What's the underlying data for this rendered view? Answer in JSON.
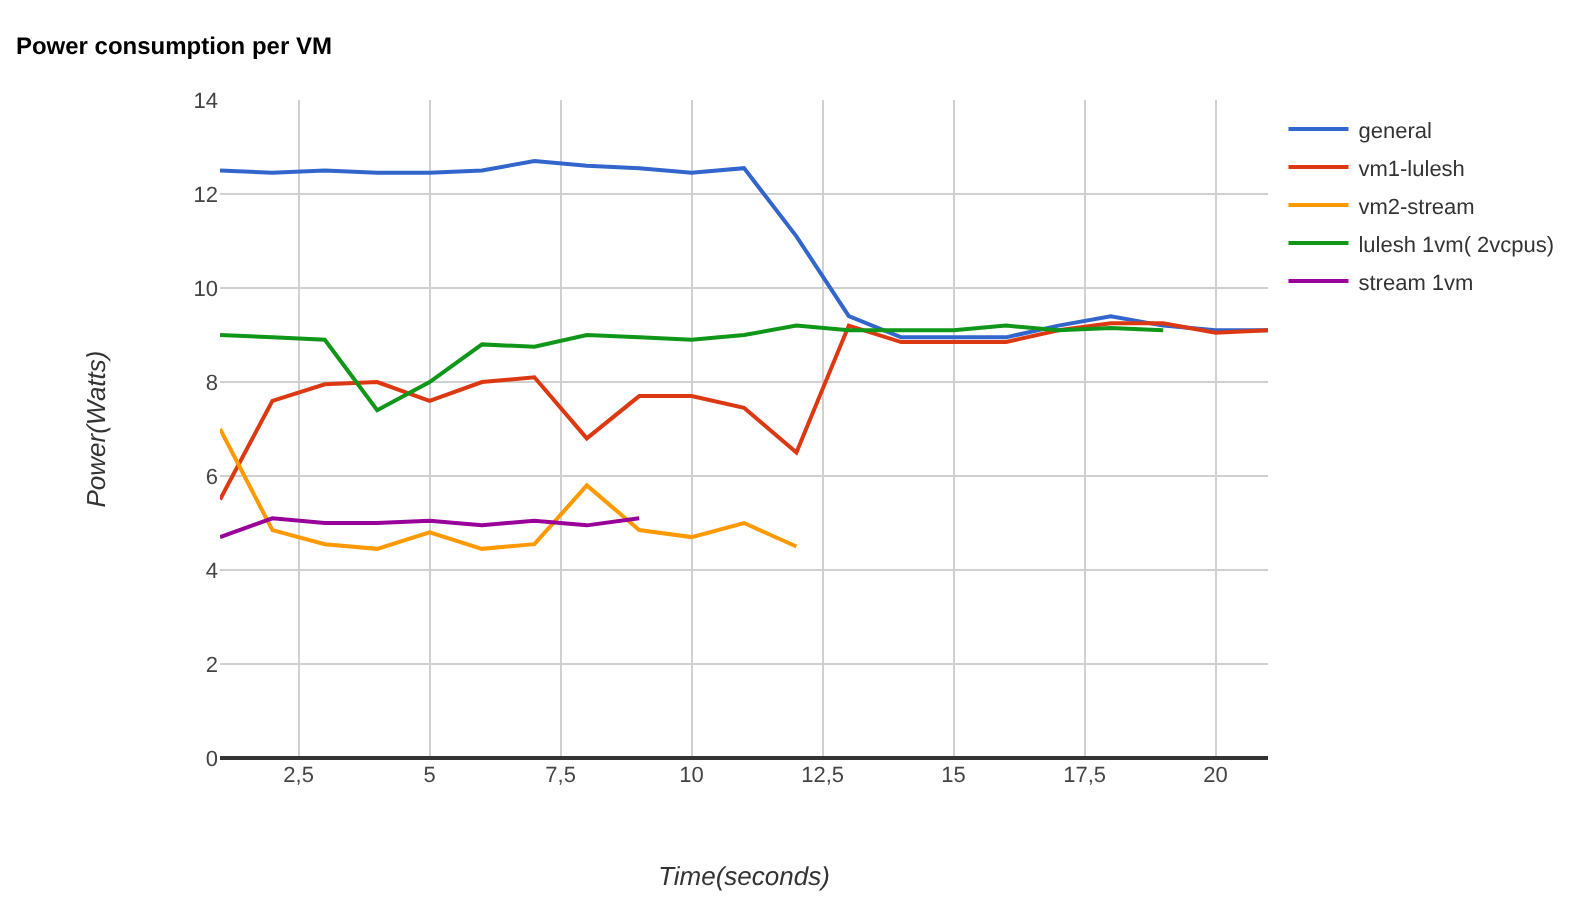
{
  "chart_data": {
    "type": "line",
    "title": "Power consumption per VM",
    "xlabel": "Time(seconds)",
    "ylabel": "Power(Watts)",
    "x": [
      1,
      2,
      3,
      4,
      5,
      6,
      7,
      8,
      9,
      10,
      11,
      12,
      13,
      14,
      15,
      16,
      17,
      18,
      19,
      20,
      21
    ],
    "series": [
      {
        "name": "general",
        "color": "#3366cc",
        "values": [
          12.5,
          12.45,
          12.5,
          12.45,
          12.45,
          12.5,
          12.7,
          12.6,
          12.55,
          12.45,
          12.55,
          11.1,
          9.4,
          8.95,
          8.95,
          8.95,
          9.2,
          9.4,
          9.2,
          9.1,
          9.1
        ]
      },
      {
        "name": "vm1-lulesh",
        "color": "#dc3912",
        "values": [
          5.5,
          7.6,
          7.95,
          8.0,
          7.6,
          8.0,
          8.1,
          6.8,
          7.7,
          7.7,
          7.45,
          6.5,
          9.2,
          8.85,
          8.85,
          8.85,
          9.1,
          9.25,
          9.25,
          9.05,
          9.1
        ]
      },
      {
        "name": "vm2-stream",
        "color": "#ff9900",
        "values": [
          7.0,
          4.85,
          4.55,
          4.45,
          4.8,
          4.45,
          4.55,
          5.8,
          4.85,
          4.7,
          5.0,
          4.5,
          null,
          null,
          null,
          null,
          null,
          null,
          null,
          null,
          null
        ]
      },
      {
        "name": "lulesh 1vm( 2vcpus)",
        "color": "#109618",
        "values": [
          9.0,
          8.95,
          8.9,
          7.4,
          8.0,
          8.8,
          8.75,
          9.0,
          8.95,
          8.9,
          9.0,
          9.2,
          9.1,
          9.1,
          9.1,
          9.2,
          9.1,
          9.15,
          9.1,
          null,
          null
        ]
      },
      {
        "name": "stream 1vm",
        "color": "#990099",
        "values": [
          4.7,
          5.1,
          5.0,
          5.0,
          5.05,
          4.95,
          5.05,
          4.95,
          5.1,
          null,
          null,
          null,
          null,
          null,
          null,
          null,
          null,
          null,
          null,
          null,
          null
        ]
      }
    ],
    "xlim": [
      1,
      21
    ],
    "xticks": [
      {
        "value": 2.5,
        "label": "2,5"
      },
      5,
      {
        "value": 7.5,
        "label": "7,5"
      },
      10,
      {
        "value": 12.5,
        "label": "12,5"
      },
      15,
      {
        "value": 17.5,
        "label": "17,5"
      },
      20
    ],
    "ylim": [
      0,
      14
    ],
    "yticks": [
      0,
      2,
      4,
      6,
      8,
      10,
      12,
      14
    ],
    "grid": true,
    "legend": "top right",
    "marker": "none",
    "line_style": "solid"
  }
}
